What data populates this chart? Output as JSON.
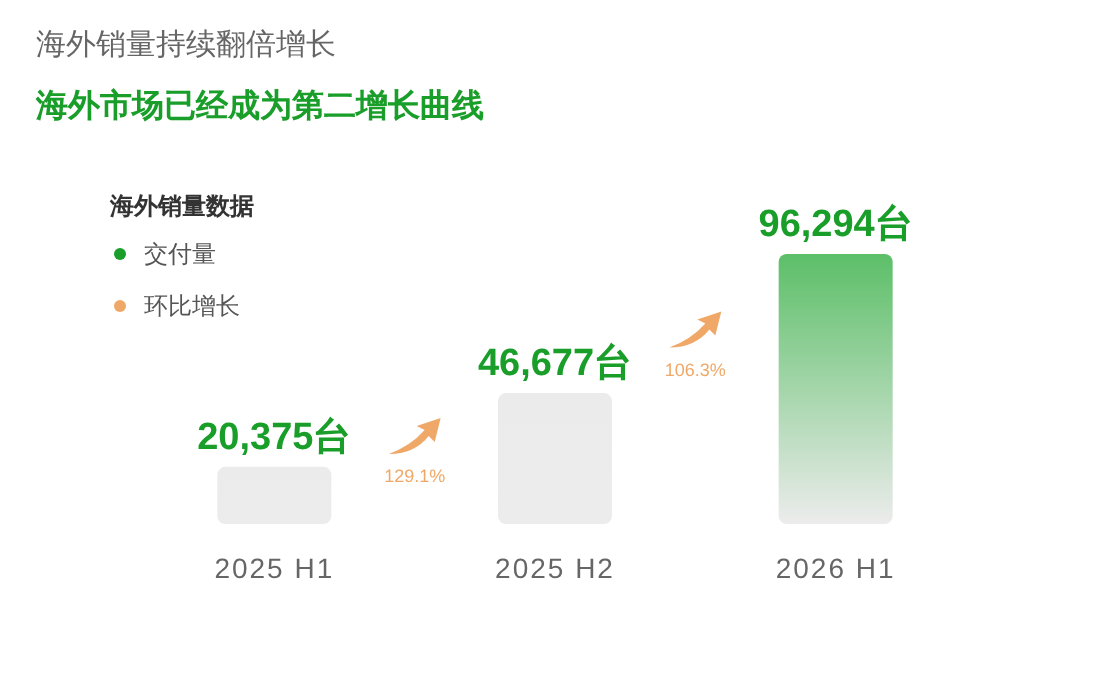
{
  "chart_data": {
    "type": "bar",
    "title": "海外销量持续翻倍增长",
    "subtitle": "海外市场已经成为第二增长曲线",
    "legend_title": "海外销量数据",
    "legend": "top left",
    "categories": [
      "2025 H1",
      "2025 H2",
      "2026 H1"
    ],
    "series": [
      {
        "name": "交付量",
        "type": "bar",
        "color": "#1a9e2a",
        "colors": [
          "#ebebeb",
          "#ebebeb",
          "#5cbf68"
        ],
        "values": [
          20375,
          46677,
          96294
        ],
        "value_labels": [
          "20,375台",
          "46,677台",
          "96,294台"
        ]
      },
      {
        "name": "环比增长",
        "type": "other",
        "color": "#f0a868",
        "values": [
          null,
          null,
          null
        ]
      }
    ],
    "annotations": [
      "129.1%",
      "106.3%"
    ]
  }
}
